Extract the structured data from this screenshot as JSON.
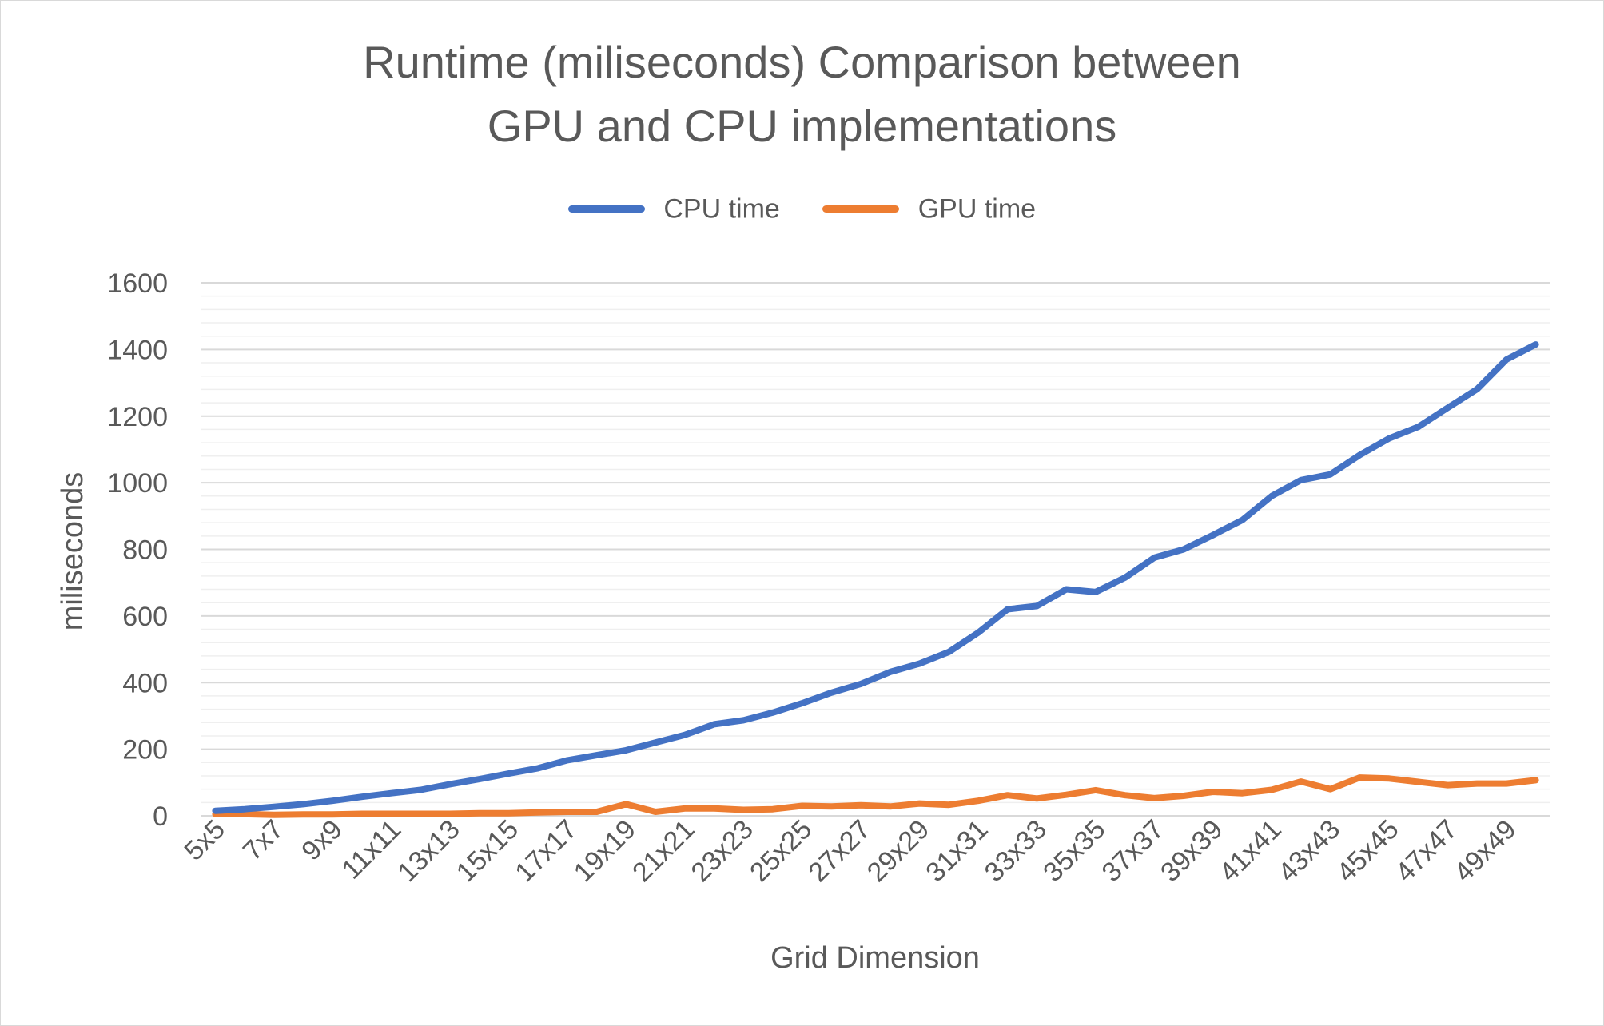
{
  "chart_data": {
    "type": "line",
    "title_lines": [
      "Runtime (miliseconds) Comparison between",
      "GPU and CPU implementations"
    ],
    "xlabel": "Grid Dimension",
    "ylabel": "miliseconds",
    "ylim": [
      0,
      1600
    ],
    "y_major_ticks": [
      0,
      200,
      400,
      600,
      800,
      1000,
      1200,
      1400,
      1600
    ],
    "y_minor_step": 40,
    "grid": true,
    "legend_position": "top",
    "x": [
      "5x5",
      "6x6",
      "7x7",
      "8x8",
      "9x9",
      "10x10",
      "11x11",
      "12x12",
      "13x13",
      "14x14",
      "15x15",
      "16x16",
      "17x17",
      "18x18",
      "19x19",
      "20x20",
      "21x21",
      "22x22",
      "23x23",
      "24x24",
      "25x25",
      "26x26",
      "27x27",
      "28x28",
      "29x29",
      "30x30",
      "31x31",
      "32x32",
      "33x33",
      "34x34",
      "35x35",
      "36x36",
      "37x37",
      "38x38",
      "39x39",
      "40x40",
      "41x41",
      "42x42",
      "43x43",
      "44x44",
      "45x45",
      "46x46",
      "47x47",
      "48x48",
      "49x49",
      "50x50"
    ],
    "x_tick_labels_shown": [
      "5x5",
      "7x7",
      "9x9",
      "11x11",
      "13x13",
      "15x15",
      "17x17",
      "19x19",
      "21x21",
      "23x23",
      "25x25",
      "27x27",
      "29x29",
      "31x31",
      "33x33",
      "35x35",
      "37x37",
      "39x39",
      "41x41",
      "43x43",
      "45x45",
      "47x47",
      "49x49"
    ],
    "series": [
      {
        "name": "CPU time",
        "color": "#4472c4",
        "values": [
          15,
          20,
          27,
          35,
          45,
          57,
          68,
          78,
          95,
          110,
          127,
          143,
          167,
          182,
          197,
          220,
          243,
          275,
          287,
          310,
          338,
          370,
          396,
          432,
          457,
          492,
          550,
          620,
          630,
          680,
          672,
          715,
          775,
          800,
          843,
          888,
          960,
          1008,
          1025,
          1083,
          1133,
          1168,
          1225,
          1281,
          1370,
          1415
        ]
      },
      {
        "name": "GPU time",
        "color": "#ed7d31",
        "values": [
          5,
          5,
          3,
          4,
          4,
          6,
          6,
          6,
          6,
          8,
          8,
          10,
          12,
          12,
          35,
          12,
          22,
          22,
          18,
          20,
          30,
          28,
          32,
          28,
          37,
          33,
          45,
          62,
          52,
          63,
          77,
          62,
          53,
          60,
          72,
          68,
          78,
          103,
          80,
          115,
          112,
          102,
          92,
          97,
          97,
          107
        ]
      }
    ]
  }
}
